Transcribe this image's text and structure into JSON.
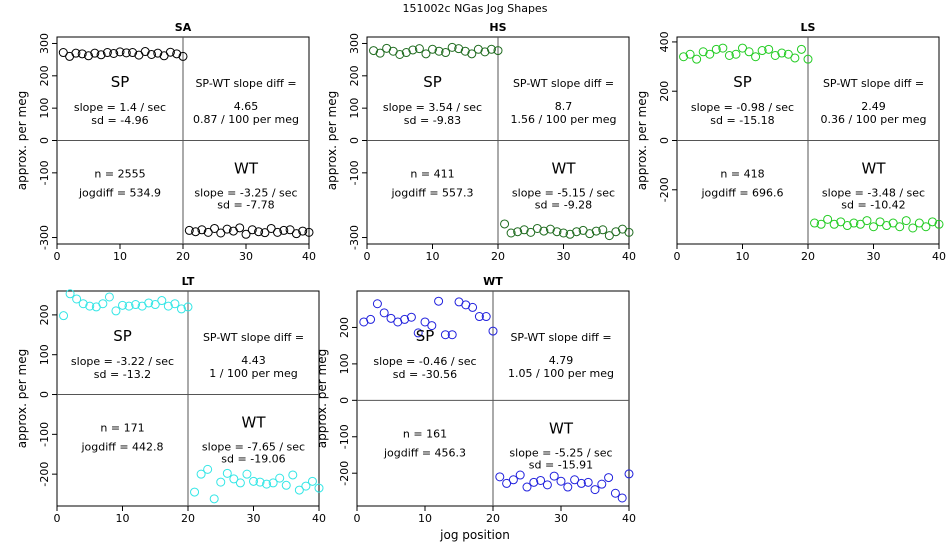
{
  "header": {
    "title": "151002c   NGas Jog Shapes"
  },
  "footer": {
    "xlabel": "jog position"
  },
  "common": {
    "ylabel": "approx. per meg",
    "sp_label": "SP",
    "wt_label": "WT",
    "diff_label": "SP-WT slope diff =",
    "x_ticks": [
      "0",
      "10",
      "20",
      "30",
      "40"
    ]
  },
  "chart_data": [
    {
      "type": "scatter",
      "panel": "SA",
      "title": "SA",
      "color": "#000000",
      "xlim": [
        0,
        40
      ],
      "ylim": [
        -320,
        320
      ],
      "y_ticks": [
        "-300",
        "-100",
        "0",
        "100",
        "200",
        "300"
      ],
      "x": [
        1,
        2,
        3,
        4,
        5,
        6,
        7,
        8,
        9,
        10,
        11,
        12,
        13,
        14,
        15,
        16,
        17,
        18,
        19,
        20,
        21,
        22,
        23,
        24,
        25,
        26,
        27,
        28,
        29,
        30,
        31,
        32,
        33,
        34,
        35,
        36,
        37,
        38,
        39,
        40
      ],
      "y": [
        272,
        260,
        270,
        268,
        262,
        270,
        265,
        272,
        269,
        274,
        271,
        272,
        264,
        275,
        266,
        270,
        262,
        273,
        268,
        260,
        -278,
        -282,
        -276,
        -284,
        -272,
        -286,
        -274,
        -280,
        -270,
        -290,
        -276,
        -282,
        -285,
        -272,
        -284,
        -278,
        -276,
        -288,
        -280,
        -284
      ],
      "sp": {
        "slope": "slope = 1.4 / sec",
        "sd": "sd = -4.96"
      },
      "wt": {
        "slope": "slope = -3.25 / sec",
        "sd": "sd = -7.78"
      },
      "n": "n = 2555",
      "jogdiff": "jogdiff = 534.9",
      "diff_value": "4.65",
      "diff_per_meg": "0.87 / 100 per meg"
    },
    {
      "type": "scatter",
      "panel": "HS",
      "title": "HS",
      "color": "#1f6b1f",
      "xlim": [
        0,
        40
      ],
      "ylim": [
        -320,
        320
      ],
      "y_ticks": [
        "-300",
        "-100",
        "0",
        "100",
        "200",
        "300"
      ],
      "x": [
        1,
        2,
        3,
        4,
        5,
        6,
        7,
        8,
        9,
        10,
        11,
        12,
        13,
        14,
        15,
        16,
        17,
        18,
        19,
        20,
        21,
        22,
        23,
        24,
        25,
        26,
        27,
        28,
        29,
        30,
        31,
        32,
        33,
        34,
        35,
        36,
        37,
        38,
        39,
        40
      ],
      "y": [
        278,
        270,
        285,
        276,
        266,
        272,
        280,
        284,
        268,
        282,
        276,
        272,
        288,
        284,
        276,
        268,
        282,
        274,
        282,
        278,
        -258,
        -286,
        -282,
        -276,
        -284,
        -272,
        -280,
        -274,
        -282,
        -286,
        -290,
        -282,
        -278,
        -288,
        -280,
        -276,
        -294,
        -282,
        -274,
        -284
      ],
      "sp": {
        "slope": "slope = 3.54 / sec",
        "sd": "sd = -9.83"
      },
      "wt": {
        "slope": "slope = -5.15 / sec",
        "sd": "sd = -9.28"
      },
      "n": "n = 411",
      "jogdiff": "jogdiff = 557.3",
      "diff_value": "8.7",
      "diff_per_meg": "1.56 / 100 per meg"
    },
    {
      "type": "scatter",
      "panel": "LS",
      "title": "LS",
      "color": "#22cc22",
      "xlim": [
        0,
        40
      ],
      "ylim": [
        -420,
        420
      ],
      "y_ticks": [
        "-200",
        "0",
        "200",
        "400"
      ],
      "x": [
        1,
        2,
        3,
        4,
        5,
        6,
        7,
        8,
        9,
        10,
        11,
        12,
        13,
        14,
        15,
        16,
        17,
        18,
        19,
        20,
        21,
        22,
        23,
        24,
        25,
        26,
        27,
        28,
        29,
        30,
        31,
        32,
        33,
        34,
        35,
        36,
        37,
        38,
        39,
        40
      ],
      "y": [
        340,
        350,
        330,
        360,
        350,
        370,
        375,
        345,
        350,
        375,
        360,
        340,
        365,
        370,
        345,
        355,
        350,
        335,
        370,
        330,
        -335,
        -340,
        -320,
        -340,
        -330,
        -345,
        -335,
        -340,
        -325,
        -350,
        -330,
        -345,
        -335,
        -350,
        -325,
        -355,
        -335,
        -350,
        -330,
        -340
      ],
      "sp": {
        "slope": "slope = -0.98 / sec",
        "sd": "sd = -15.18"
      },
      "wt": {
        "slope": "slope = -3.48 / sec",
        "sd": "sd = -10.42"
      },
      "n": "n = 418",
      "jogdiff": "jogdiff = 696.6",
      "diff_value": "2.49",
      "diff_per_meg": "0.36 / 100 per meg"
    },
    {
      "type": "scatter",
      "panel": "LT",
      "title": "LT",
      "color": "#33e6e6",
      "xlim": [
        0,
        40
      ],
      "ylim": [
        -280,
        260
      ],
      "y_ticks": [
        "-200",
        "-100",
        "0",
        "100",
        "200"
      ],
      "x": [
        1,
        2,
        3,
        4,
        5,
        6,
        7,
        8,
        9,
        10,
        11,
        12,
        13,
        14,
        15,
        16,
        17,
        18,
        19,
        20,
        21,
        22,
        23,
        24,
        25,
        26,
        27,
        28,
        29,
        30,
        31,
        32,
        33,
        34,
        35,
        36,
        37,
        38,
        39,
        40
      ],
      "y": [
        198,
        253,
        240,
        228,
        222,
        220,
        228,
        245,
        210,
        224,
        222,
        226,
        222,
        230,
        226,
        236,
        222,
        228,
        215,
        220,
        -245,
        -200,
        -188,
        -262,
        -220,
        -198,
        -212,
        -222,
        -200,
        -218,
        -220,
        -225,
        -222,
        -210,
        -228,
        -202,
        -240,
        -230,
        -218,
        -235
      ],
      "sp": {
        "slope": "slope = -3.22 / sec",
        "sd": "sd = -13.2"
      },
      "wt": {
        "slope": "slope = -7.65 / sec",
        "sd": "sd = -19.06"
      },
      "n": "n = 171",
      "jogdiff": "jogdiff = 442.8",
      "diff_value": "4.43",
      "diff_per_meg": "1 / 100 per meg"
    },
    {
      "type": "scatter",
      "panel": "WT",
      "title": "WT",
      "color": "#2020dd",
      "xlim": [
        0,
        40
      ],
      "ylim": [
        -290,
        300
      ],
      "y_ticks": [
        "-200",
        "-100",
        "0",
        "100",
        "200"
      ],
      "x": [
        1,
        2,
        3,
        4,
        5,
        6,
        7,
        8,
        9,
        10,
        11,
        12,
        13,
        14,
        15,
        16,
        17,
        18,
        19,
        20,
        21,
        22,
        23,
        24,
        25,
        26,
        27,
        28,
        29,
        30,
        31,
        32,
        33,
        34,
        35,
        36,
        37,
        38,
        39,
        40
      ],
      "y": [
        215,
        222,
        265,
        240,
        225,
        215,
        222,
        228,
        185,
        215,
        205,
        272,
        180,
        180,
        270,
        262,
        255,
        230,
        230,
        190,
        -210,
        -228,
        -218,
        -205,
        -238,
        -225,
        -220,
        -232,
        -208,
        -222,
        -238,
        -218,
        -228,
        -225,
        -245,
        -230,
        -212,
        -255,
        -268,
        -202
      ],
      "sp": {
        "slope": "slope = -0.46 / sec",
        "sd": "sd = -30.56"
      },
      "wt": {
        "slope": "slope = -5.25 / sec",
        "sd": "sd = -15.91"
      },
      "n": "n = 161",
      "jogdiff": "jogdiff = 456.3",
      "diff_value": "4.79",
      "diff_per_meg": "1.05 / 100 per meg"
    }
  ]
}
